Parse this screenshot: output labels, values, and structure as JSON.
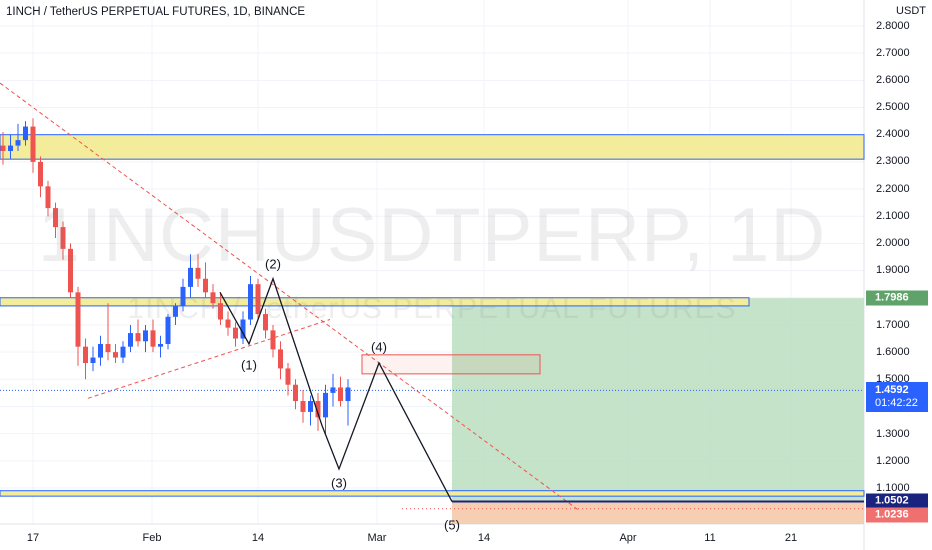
{
  "header": {
    "title": "1INCH / TetherUS PERPETUAL FUTURES, 1D, BINANCE",
    "currency": "USDT"
  },
  "watermark": {
    "symbol": "1INCHUSDTPERP, 1D",
    "description": "1INCH / TetherUS PERPETUAL FUTURES"
  },
  "price_axis": {
    "ticks": [
      "2.8000",
      "2.7000",
      "2.6000",
      "2.5000",
      "2.4000",
      "2.3000",
      "2.2000",
      "2.1000",
      "2.0000",
      "1.9000",
      "1.7000",
      "1.6000",
      "1.5000",
      "1.3000",
      "1.2000",
      "1.1000"
    ]
  },
  "time_axis": {
    "labels": [
      "17",
      "Feb",
      "14",
      "Mar",
      "14",
      "Apr",
      "11",
      "21"
    ]
  },
  "price_tags": {
    "target": {
      "value": "1.7986",
      "color": "#5fa36a"
    },
    "current": {
      "value": "1.4592",
      "countdown": "01:42:22",
      "color": "#2962ff"
    },
    "stop": {
      "value": "1.0502",
      "color": "#1a237e"
    },
    "entry": {
      "value": "1.0236",
      "color": "#f07070"
    }
  },
  "waves": {
    "w1": "(1)",
    "w2": "(2)",
    "w3": "(3)",
    "w4": "(4)",
    "w5": "(5)"
  },
  "colors": {
    "up": "#2962ff",
    "down": "#ef5350",
    "zone": "#f3ec9a",
    "zone_border": "#2962ff",
    "profit": "#bfe0c3",
    "loss": "#f5c9a9",
    "trend": "#ef5350"
  },
  "chart_data": {
    "type": "candlestick",
    "symbol": "1INCHUSDTPERP",
    "interval": "1D",
    "ylim": [
      1.0,
      2.85
    ],
    "zones": [
      {
        "low": 2.31,
        "high": 2.4
      },
      {
        "low": 1.77,
        "high": 1.8
      },
      {
        "low": 1.07,
        "high": 1.09
      }
    ],
    "candles": [
      [
        2.36,
        2.41,
        2.29,
        2.34
      ],
      [
        2.34,
        2.4,
        2.31,
        2.36
      ],
      [
        2.36,
        2.44,
        2.34,
        2.38
      ],
      [
        2.38,
        2.45,
        2.36,
        2.43
      ],
      [
        2.43,
        2.46,
        2.26,
        2.3
      ],
      [
        2.3,
        2.32,
        2.17,
        2.21
      ],
      [
        2.21,
        2.23,
        2.1,
        2.13
      ],
      [
        2.13,
        2.15,
        2.02,
        2.06
      ],
      [
        2.06,
        2.08,
        1.94,
        1.98
      ],
      [
        1.98,
        2.0,
        1.8,
        1.82
      ],
      [
        1.82,
        1.84,
        1.55,
        1.62
      ],
      [
        1.62,
        1.65,
        1.5,
        1.56
      ],
      [
        1.56,
        1.62,
        1.53,
        1.58
      ],
      [
        1.58,
        1.66,
        1.55,
        1.63
      ],
      [
        1.63,
        1.78,
        1.57,
        1.6
      ],
      [
        1.6,
        1.63,
        1.56,
        1.58
      ],
      [
        1.58,
        1.64,
        1.56,
        1.62
      ],
      [
        1.62,
        1.7,
        1.6,
        1.67
      ],
      [
        1.67,
        1.72,
        1.62,
        1.64
      ],
      [
        1.64,
        1.7,
        1.6,
        1.68
      ],
      [
        1.68,
        1.72,
        1.6,
        1.62
      ],
      [
        1.62,
        1.66,
        1.58,
        1.63
      ],
      [
        1.63,
        1.74,
        1.61,
        1.73
      ],
      [
        1.73,
        1.78,
        1.7,
        1.77
      ],
      [
        1.77,
        1.87,
        1.75,
        1.84
      ],
      [
        1.84,
        1.96,
        1.8,
        1.91
      ],
      [
        1.91,
        1.96,
        1.84,
        1.87
      ],
      [
        1.87,
        1.93,
        1.8,
        1.82
      ],
      [
        1.82,
        1.85,
        1.76,
        1.78
      ],
      [
        1.78,
        1.82,
        1.7,
        1.72
      ],
      [
        1.72,
        1.75,
        1.66,
        1.69
      ],
      [
        1.69,
        1.71,
        1.62,
        1.65
      ],
      [
        1.65,
        1.75,
        1.63,
        1.72
      ],
      [
        1.72,
        1.88,
        1.7,
        1.85
      ],
      [
        1.85,
        1.87,
        1.72,
        1.74
      ],
      [
        1.74,
        1.76,
        1.65,
        1.68
      ],
      [
        1.68,
        1.7,
        1.58,
        1.61
      ],
      [
        1.61,
        1.64,
        1.5,
        1.54
      ],
      [
        1.54,
        1.56,
        1.44,
        1.48
      ],
      [
        1.48,
        1.5,
        1.39,
        1.42
      ],
      [
        1.42,
        1.46,
        1.34,
        1.38
      ],
      [
        1.38,
        1.44,
        1.33,
        1.42
      ],
      [
        1.42,
        1.45,
        1.31,
        1.36
      ],
      [
        1.36,
        1.48,
        1.3,
        1.45
      ],
      [
        1.45,
        1.52,
        1.4,
        1.47
      ],
      [
        1.47,
        1.51,
        1.4,
        1.42
      ],
      [
        1.42,
        1.5,
        1.33,
        1.47
      ]
    ],
    "price_lines": {
      "target": 1.7986,
      "current": 1.4592,
      "stop": 1.0502,
      "entry": 1.0236
    },
    "wave_points": [
      {
        "label": "(1)",
        "price": 1.63
      },
      {
        "label": "(2)",
        "price": 1.87
      },
      {
        "label": "(3)",
        "price": 1.17
      },
      {
        "label": "(4)",
        "price": 1.56
      },
      {
        "label": "(5)",
        "price": 1.05
      }
    ]
  }
}
